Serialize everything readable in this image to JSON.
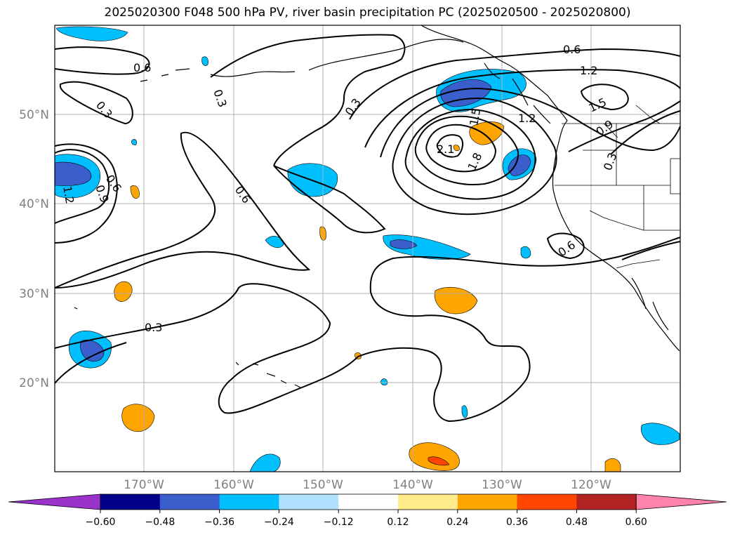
{
  "title": "2025020300 F048 500 hPa PV, river basin precipitation PC (2025020500 - 2025020800)",
  "map": {
    "lat_labels": [
      "50°N",
      "40°N",
      "30°N",
      "20°N"
    ],
    "lon_labels": [
      "170°W",
      "160°W",
      "150°W",
      "140°W",
      "130°W",
      "120°W"
    ],
    "contour_labels": [
      "0.6",
      "0.3",
      "0.3",
      "0.6",
      "0.9",
      "1.2",
      "0.6",
      "0.3",
      "0.3",
      "0.6",
      "1.2",
      "1.5",
      "1.8",
      "2.1",
      "1.5",
      "1.2",
      "0.9",
      "0.3",
      "0.6"
    ]
  },
  "colorbar": {
    "ticks": [
      "−0.60",
      "−0.48",
      "−0.36",
      "−0.24",
      "−0.12",
      "0.12",
      "0.24",
      "0.36",
      "0.48",
      "0.60"
    ],
    "colors": [
      "#9933cc",
      "#00008b",
      "#3a5fcd",
      "#00bfff",
      "#b0e2ff",
      "#ffffff",
      "#ffeb8a",
      "#ffa500",
      "#ff4500",
      "#b22222",
      "#ff82ab"
    ]
  }
}
